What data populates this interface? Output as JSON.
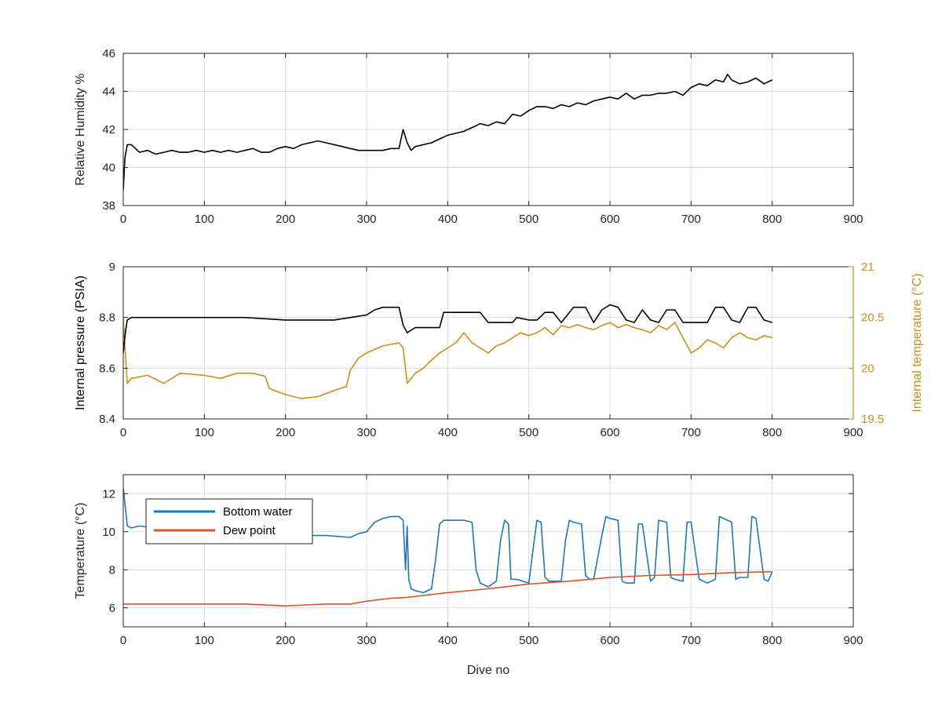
{
  "colors": {
    "black": "#000000",
    "gold": "#C8901A",
    "blue": "#1F77B4",
    "orange": "#D4562A",
    "grid": "#DCDCDC",
    "axis": "#262626"
  },
  "chart_data": [
    {
      "type": "line",
      "ylabel": "Relative Humidity %",
      "xlim": [
        0,
        900
      ],
      "ylim": [
        38,
        46
      ],
      "xticks": [
        "0",
        "100",
        "200",
        "300",
        "400",
        "500",
        "600",
        "700",
        "800",
        "900"
      ],
      "yticks": [
        "38",
        "40",
        "42",
        "44",
        "46"
      ],
      "grid": true,
      "series": [
        {
          "color": "black",
          "x": [
            0,
            2,
            5,
            10,
            20,
            30,
            40,
            50,
            60,
            70,
            80,
            90,
            100,
            110,
            120,
            130,
            140,
            150,
            160,
            170,
            180,
            190,
            200,
            210,
            220,
            230,
            240,
            250,
            260,
            270,
            280,
            290,
            300,
            310,
            320,
            330,
            340,
            345,
            350,
            355,
            360,
            370,
            380,
            390,
            400,
            410,
            420,
            430,
            440,
            450,
            460,
            470,
            480,
            490,
            500,
            510,
            520,
            530,
            540,
            550,
            560,
            570,
            580,
            590,
            600,
            610,
            620,
            630,
            640,
            650,
            660,
            670,
            680,
            690,
            700,
            710,
            720,
            730,
            740,
            745,
            750,
            760,
            770,
            780,
            790,
            800
          ],
          "y": [
            38.8,
            40.5,
            41.2,
            41.2,
            40.8,
            40.9,
            40.7,
            40.8,
            40.9,
            40.8,
            40.8,
            40.9,
            40.8,
            40.9,
            40.8,
            40.9,
            40.8,
            40.9,
            41.0,
            40.8,
            40.8,
            41.0,
            41.1,
            41.0,
            41.2,
            41.3,
            41.4,
            41.3,
            41.2,
            41.1,
            41.0,
            40.9,
            40.9,
            40.9,
            40.9,
            41.0,
            41.0,
            42.0,
            41.3,
            40.9,
            41.1,
            41.2,
            41.3,
            41.5,
            41.7,
            41.8,
            41.9,
            42.1,
            42.3,
            42.2,
            42.4,
            42.3,
            42.8,
            42.7,
            43.0,
            43.2,
            43.2,
            43.1,
            43.3,
            43.2,
            43.4,
            43.3,
            43.5,
            43.6,
            43.7,
            43.6,
            43.9,
            43.6,
            43.8,
            43.8,
            43.9,
            43.9,
            44.0,
            43.8,
            44.2,
            44.4,
            44.3,
            44.6,
            44.5,
            44.9,
            44.6,
            44.4,
            44.5,
            44.7,
            44.4,
            44.6
          ]
        }
      ]
    },
    {
      "type": "line",
      "ylabel": "Internal pressure (PSIA)",
      "ylabel_right": "Internal temperature (°C)",
      "xlim": [
        0,
        900
      ],
      "ylim": [
        8.4,
        9
      ],
      "ylim_right": [
        19.5,
        21
      ],
      "xticks": [
        "0",
        "100",
        "200",
        "300",
        "400",
        "500",
        "600",
        "700",
        "800",
        "900"
      ],
      "yticks": [
        "8.4",
        "8.6",
        "8.8",
        "9"
      ],
      "yticks_right": [
        "19.5",
        "20",
        "20.5",
        "21"
      ],
      "grid": true,
      "series": [
        {
          "color": "black",
          "axis": "left",
          "x": [
            0,
            3,
            5,
            10,
            50,
            100,
            150,
            200,
            240,
            260,
            280,
            300,
            310,
            320,
            340,
            345,
            350,
            360,
            380,
            390,
            395,
            440,
            450,
            480,
            485,
            500,
            510,
            520,
            530,
            540,
            555,
            570,
            580,
            590,
            600,
            610,
            620,
            630,
            640,
            650,
            660,
            670,
            680,
            690,
            700,
            720,
            730,
            740,
            750,
            760,
            770,
            780,
            790,
            800
          ],
          "y": [
            8.66,
            8.75,
            8.79,
            8.8,
            8.8,
            8.8,
            8.8,
            8.79,
            8.79,
            8.79,
            8.8,
            8.81,
            8.83,
            8.84,
            8.84,
            8.77,
            8.74,
            8.76,
            8.76,
            8.76,
            8.82,
            8.82,
            8.78,
            8.78,
            8.8,
            8.79,
            8.79,
            8.82,
            8.82,
            8.78,
            8.84,
            8.84,
            8.78,
            8.83,
            8.85,
            8.84,
            8.79,
            8.78,
            8.83,
            8.79,
            8.78,
            8.83,
            8.83,
            8.78,
            8.78,
            8.78,
            8.84,
            8.84,
            8.79,
            8.78,
            8.84,
            8.84,
            8.79,
            8.78
          ]
        },
        {
          "color": "gold",
          "axis": "right",
          "x": [
            0,
            2,
            5,
            10,
            30,
            50,
            70,
            100,
            120,
            140,
            160,
            175,
            180,
            200,
            220,
            240,
            260,
            275,
            280,
            290,
            300,
            320,
            340,
            345,
            350,
            355,
            360,
            370,
            380,
            390,
            400,
            410,
            420,
            430,
            440,
            450,
            460,
            470,
            480,
            490,
            500,
            510,
            520,
            530,
            540,
            550,
            560,
            570,
            580,
            590,
            600,
            610,
            620,
            630,
            640,
            650,
            660,
            670,
            680,
            690,
            700,
            710,
            720,
            730,
            740,
            750,
            760,
            770,
            780,
            790,
            800
          ],
          "y": [
            20.5,
            20.2,
            19.85,
            19.9,
            19.93,
            19.85,
            19.95,
            19.93,
            19.9,
            19.95,
            19.95,
            19.92,
            19.8,
            19.74,
            19.7,
            19.72,
            19.78,
            19.82,
            19.98,
            20.1,
            20.15,
            20.22,
            20.25,
            20.2,
            19.85,
            19.9,
            19.95,
            20.0,
            20.08,
            20.15,
            20.2,
            20.25,
            20.35,
            20.25,
            20.2,
            20.15,
            20.22,
            20.25,
            20.3,
            20.35,
            20.32,
            20.35,
            20.4,
            20.33,
            20.42,
            20.4,
            20.43,
            20.4,
            20.38,
            20.42,
            20.45,
            20.4,
            20.43,
            20.4,
            20.38,
            20.35,
            20.42,
            20.38,
            20.45,
            20.3,
            20.15,
            20.2,
            20.28,
            20.25,
            20.2,
            20.3,
            20.35,
            20.3,
            20.28,
            20.32,
            20.3
          ]
        }
      ]
    },
    {
      "type": "line",
      "xlabel": "Dive no",
      "ylabel": "Temperature (°C)",
      "xlim": [
        0,
        900
      ],
      "ylim": [
        5,
        13
      ],
      "xticks": [
        "0",
        "100",
        "200",
        "300",
        "400",
        "500",
        "600",
        "700",
        "800",
        "900"
      ],
      "yticks": [
        "6",
        "8",
        "10",
        "12"
      ],
      "grid": true,
      "legend": "top-left",
      "series": [
        {
          "name": "Bottom water",
          "color": "blue",
          "x": [
            0,
            2,
            5,
            10,
            20,
            40,
            60,
            80,
            100,
            150,
            200,
            250,
            280,
            290,
            300,
            310,
            320,
            330,
            340,
            345,
            348,
            350,
            352,
            355,
            360,
            370,
            380,
            385,
            390,
            395,
            400,
            420,
            430,
            435,
            440,
            450,
            460,
            465,
            470,
            475,
            478,
            485,
            500,
            505,
            510,
            515,
            520,
            525,
            530,
            540,
            545,
            550,
            555,
            565,
            570,
            575,
            580,
            590,
            595,
            600,
            610,
            615,
            620,
            630,
            635,
            640,
            650,
            655,
            660,
            670,
            675,
            680,
            690,
            695,
            700,
            710,
            720,
            730,
            735,
            740,
            750,
            755,
            760,
            770,
            775,
            780,
            790,
            795,
            800
          ],
          "y": [
            12.3,
            11.5,
            10.3,
            10.2,
            10.3,
            10.2,
            10.1,
            10.0,
            10.0,
            9.9,
            9.8,
            9.8,
            9.7,
            9.9,
            10.0,
            10.5,
            10.7,
            10.8,
            10.8,
            10.6,
            8.0,
            10.3,
            7.5,
            7.0,
            6.9,
            6.8,
            7.0,
            8.5,
            10.4,
            10.6,
            10.6,
            10.6,
            10.5,
            8.0,
            7.3,
            7.1,
            7.4,
            9.5,
            10.6,
            10.4,
            7.5,
            7.5,
            7.3,
            9.0,
            10.6,
            10.5,
            7.6,
            7.4,
            7.4,
            7.4,
            9.5,
            10.6,
            10.5,
            10.4,
            7.7,
            7.5,
            7.5,
            9.8,
            10.8,
            10.7,
            10.6,
            7.4,
            7.3,
            7.3,
            10.4,
            10.4,
            7.4,
            7.6,
            10.6,
            10.5,
            7.6,
            7.5,
            7.4,
            10.5,
            10.5,
            7.5,
            7.3,
            7.5,
            10.8,
            10.7,
            10.5,
            7.5,
            7.6,
            7.6,
            10.8,
            10.7,
            7.5,
            7.4,
            7.9
          ]
        },
        {
          "name": "Dew point",
          "color": "orange",
          "x": [
            0,
            20,
            50,
            100,
            150,
            200,
            250,
            280,
            300,
            330,
            350,
            400,
            450,
            500,
            550,
            600,
            650,
            700,
            750,
            800
          ],
          "y": [
            6.2,
            6.2,
            6.2,
            6.2,
            6.2,
            6.1,
            6.2,
            6.2,
            6.35,
            6.5,
            6.55,
            6.8,
            7.0,
            7.25,
            7.4,
            7.6,
            7.7,
            7.75,
            7.85,
            7.9
          ]
        }
      ]
    }
  ]
}
